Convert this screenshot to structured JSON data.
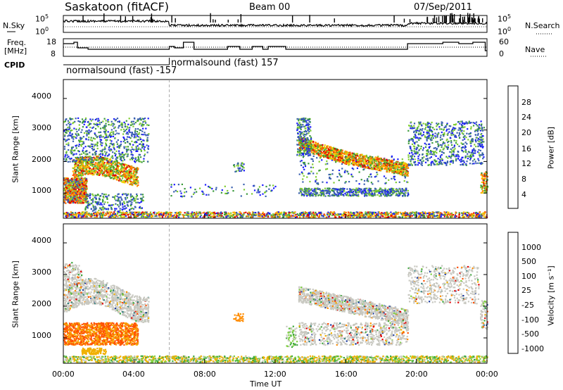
{
  "header": {
    "station": "Saskatoon (fitACF)",
    "beam": "Beam 00",
    "date": "07/Sep/2011"
  },
  "left_labels": {
    "nsky": "N.Sky",
    "freq_line1": "Freq.",
    "freq_line2": "[MHz]",
    "cpid": "CPID"
  },
  "right_labels": {
    "nsearch": "N.Search",
    "nave": "Nave"
  },
  "noise_panel": {
    "left_tick_top": "10^5",
    "left_tick_bottom": "10^0",
    "right_tick_top": "10^5",
    "right_tick_bottom": "10^0"
  },
  "freq_panel": {
    "left_tick_top": "18",
    "left_tick_bottom": "8",
    "right_tick_top": "60",
    "right_tick_bottom": "0"
  },
  "cpid_panel": {
    "label_a": "normalsound (fast) -157",
    "label_b": "normalsound (fast) 157"
  },
  "power_colorbar": {
    "title": "Power [dB]",
    "ticks": [
      "28",
      "24",
      "20",
      "16",
      "12",
      "8",
      "4"
    ],
    "colors": [
      "#e00000",
      "#ff6a00",
      "#ffa500",
      "#f0d000",
      "#7ecc30",
      "#3a9a3a",
      "#3a60b0",
      "#1a1aff"
    ]
  },
  "velocity_colorbar": {
    "title": "Velocity [m s⁻¹]",
    "ticks": [
      "1000",
      "500",
      "100",
      "25",
      "-25",
      "-100",
      "-500",
      "-1000"
    ],
    "colors": [
      "#1a3aa0",
      "#2d7f7f",
      "#3aa83a",
      "#7ed040",
      "#c8c8c0",
      "#f0b000",
      "#ff8c00",
      "#ff5000",
      "#e00000"
    ]
  },
  "chart_data": [
    {
      "type": "heatmap",
      "panel": "power",
      "ylabel": "Slant Range [km]",
      "yticks": [
        "1000",
        "2000",
        "3000",
        "4000"
      ],
      "ylim": [
        200,
        4600
      ],
      "xlim": [
        0,
        24
      ],
      "clabel": "Power [dB]",
      "clim": [
        0,
        30
      ]
    },
    {
      "type": "heatmap",
      "panel": "velocity",
      "ylabel": "Slant Range [km]",
      "yticks": [
        "1000",
        "2000",
        "3000",
        "4000"
      ],
      "ylim": [
        200,
        4600
      ],
      "xlim": [
        0,
        24
      ],
      "clabel": "Velocity [m s⁻¹]",
      "clim": [
        -1000,
        1000
      ]
    }
  ],
  "time_axis": {
    "xlabel": "Time UT",
    "ticks": [
      "00:00",
      "04:00",
      "08:00",
      "12:00",
      "16:00",
      "20:00",
      "00:00"
    ]
  }
}
